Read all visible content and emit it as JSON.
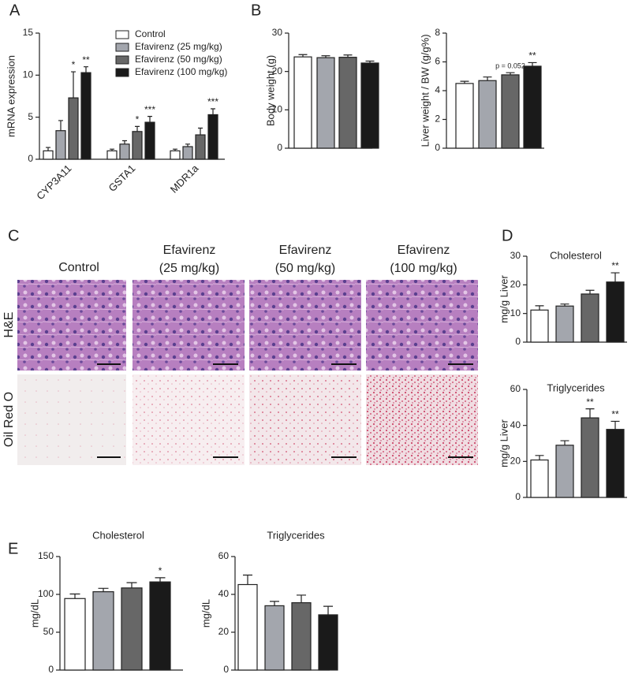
{
  "panel_labels": [
    "A",
    "B",
    "C",
    "D",
    "E"
  ],
  "histology": {
    "columns": [
      [
        "Control"
      ],
      [
        "Efavirenz",
        "(25 mg/kg)"
      ],
      [
        "Efavirenz",
        "(50 mg/kg)"
      ],
      [
        "Efavirenz",
        "(100 mg/kg)"
      ]
    ],
    "rows": [
      "H&E",
      "Oil Red O"
    ]
  },
  "chart_data": [
    {
      "type": "bar",
      "ylabel": "mRNA expression",
      "categories": [
        "CYP3A11",
        "GSTA1",
        "MDR1a"
      ],
      "ylim": [
        0,
        15
      ],
      "yticks": [
        0,
        5,
        10,
        15
      ],
      "series": [
        {
          "name": "Control",
          "color": "#ffffff",
          "values": [
            1.0,
            1.0,
            1.0
          ],
          "errors": [
            0.4,
            0.2,
            0.2
          ],
          "significance": [
            null,
            null,
            null
          ]
        },
        {
          "name": "Efavirenz (25 mg/kg)",
          "color": "#a3a6ad",
          "values": [
            3.4,
            1.8,
            1.5
          ],
          "errors": [
            1.2,
            0.4,
            0.3
          ],
          "significance": [
            null,
            null,
            null
          ]
        },
        {
          "name": "Efavirenz (50 mg/kg)",
          "color": "#676767",
          "values": [
            7.3,
            3.3,
            2.9
          ],
          "errors": [
            3.1,
            0.6,
            0.8
          ],
          "significance": [
            "*",
            "*",
            null
          ]
        },
        {
          "name": "Efavirenz (100 mg/kg)",
          "color": "#1a1a1a",
          "values": [
            10.3,
            4.4,
            5.3
          ],
          "errors": [
            0.7,
            0.7,
            0.7
          ],
          "significance": [
            "**",
            "***",
            "***"
          ]
        }
      ]
    },
    {
      "type": "bar",
      "ylabel": "Body weight (g)",
      "ylim": [
        0,
        30
      ],
      "yticks": [
        0,
        10,
        20,
        30
      ],
      "colors": [
        "#ffffff",
        "#a3a6ad",
        "#676767",
        "#1a1a1a"
      ],
      "values": [
        23.8,
        23.6,
        23.7,
        22.2
      ],
      "errors": [
        0.6,
        0.5,
        0.6,
        0.5
      ],
      "significance": [
        null,
        null,
        null,
        null
      ]
    },
    {
      "type": "bar",
      "ylabel": "Liver weight / BW (g/g%)",
      "ylim": [
        0,
        8
      ],
      "yticks": [
        0,
        2,
        4,
        6,
        8
      ],
      "colors": [
        "#ffffff",
        "#a3a6ad",
        "#676767",
        "#1a1a1a"
      ],
      "values": [
        4.5,
        4.7,
        5.1,
        5.7
      ],
      "errors": [
        0.15,
        0.25,
        0.15,
        0.25
      ],
      "significance": [
        null,
        null,
        "p = 0.052",
        "**"
      ]
    },
    {
      "type": "bar",
      "title": "Cholesterol",
      "ylabel": "mg/g Liver",
      "ylim": [
        0,
        30
      ],
      "yticks": [
        0,
        10,
        20,
        30
      ],
      "colors": [
        "#ffffff",
        "#a3a6ad",
        "#676767",
        "#1a1a1a"
      ],
      "values": [
        11.2,
        12.6,
        16.8,
        21.0
      ],
      "errors": [
        1.5,
        0.7,
        1.3,
        3.2
      ],
      "significance": [
        null,
        null,
        null,
        "**"
      ]
    },
    {
      "type": "bar",
      "title": "Triglycerides",
      "ylabel": "mg/g Liver",
      "ylim": [
        0,
        60
      ],
      "yticks": [
        0,
        20,
        40,
        60
      ],
      "colors": [
        "#ffffff",
        "#a3a6ad",
        "#676767",
        "#1a1a1a"
      ],
      "values": [
        20.8,
        29.0,
        44.2,
        37.8
      ],
      "errors": [
        2.5,
        2.5,
        5.0,
        4.5
      ],
      "significance": [
        null,
        null,
        "**",
        "**"
      ]
    },
    {
      "type": "bar",
      "title": "Cholesterol",
      "ylabel": "mg/dL",
      "ylim": [
        0,
        150
      ],
      "yticks": [
        0,
        50,
        100,
        150
      ],
      "colors": [
        "#ffffff",
        "#a3a6ad",
        "#676767",
        "#1a1a1a"
      ],
      "values": [
        94.5,
        103.5,
        108.5,
        116.5
      ],
      "errors": [
        6.0,
        4.5,
        7.0,
        5.5
      ],
      "significance": [
        null,
        null,
        null,
        "*"
      ]
    },
    {
      "type": "bar",
      "title": "Triglycerides",
      "ylabel": "mg/dL",
      "ylim": [
        0,
        60
      ],
      "yticks": [
        0,
        20,
        40,
        60
      ],
      "colors": [
        "#ffffff",
        "#a3a6ad",
        "#676767",
        "#1a1a1a"
      ],
      "values": [
        45.2,
        34.0,
        35.6,
        29.2
      ],
      "errors": [
        5.0,
        2.3,
        4.0,
        4.5
      ],
      "significance": [
        null,
        null,
        null,
        null
      ]
    }
  ]
}
